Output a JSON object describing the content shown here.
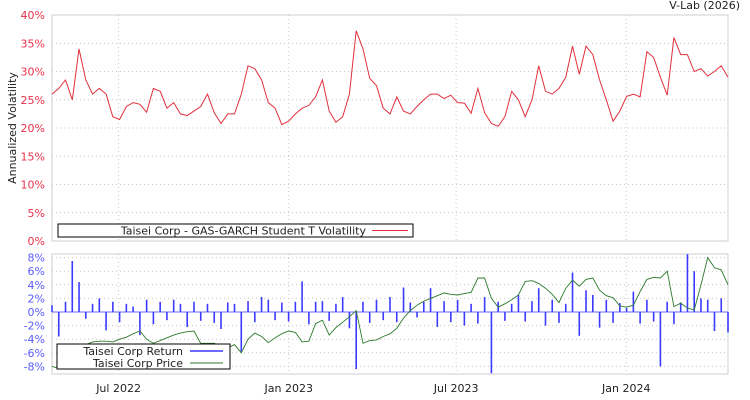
{
  "credit": "V-Lab (2026)",
  "colors": {
    "volatility": "#e0303c",
    "return": "#3a3aff",
    "price": "#2b7a2b",
    "vol_axis": "#e8304a",
    "ret_axis": "#5a5aff"
  },
  "chart_data": [
    {
      "type": "line",
      "title": "",
      "ylabel": "Annualized Volatility",
      "ylim": [
        0,
        40
      ],
      "yticks": [
        "0%",
        "5%",
        "10%",
        "15%",
        "20%",
        "25%",
        "30%",
        "35%",
        "40%"
      ],
      "xrange": [
        "2022-04-20",
        "2024-04-20"
      ],
      "grid": true,
      "legend": {
        "position": "bottom-left",
        "entries": [
          "Taisei Corp - GAS-GARCH Student T Volatility"
        ]
      },
      "series": [
        {
          "name": "Taisei Corp - GAS-GARCH Student T Volatility",
          "sampling": "evenly spaced over xrange",
          "values": [
            26,
            27,
            28.5,
            25,
            34,
            28.5,
            26,
            27,
            26,
            22,
            21.5,
            23.8,
            24.5,
            24.2,
            22.8,
            27,
            26.5,
            23.5,
            24.5,
            22.5,
            22.2,
            23,
            23.8,
            26,
            22.7,
            20.8,
            22.5,
            22.5,
            26,
            31,
            30.5,
            28.5,
            24.5,
            23.5,
            20.6,
            21.2,
            22.5,
            23.5,
            24,
            25.5,
            28.5,
            23,
            21,
            22,
            26,
            37.2,
            34,
            28.8,
            27.5,
            23.5,
            22.5,
            25.5,
            23,
            22.5,
            23.8,
            25,
            26,
            26,
            25.2,
            25.8,
            24.5,
            24.4,
            22.6,
            27,
            22.7,
            20.8,
            20.3,
            22,
            26.5,
            25,
            22,
            25,
            31,
            26.5,
            26,
            27,
            29,
            34.5,
            29.5,
            34.5,
            33,
            28.5,
            25,
            21.2,
            23,
            25.6,
            26,
            25.5,
            33.5,
            32.5,
            29,
            25.8,
            36,
            33,
            33,
            30,
            30.5,
            29.2,
            30,
            31,
            29
          ]
        }
      ]
    },
    {
      "type": "line",
      "title": "",
      "ylabel": "",
      "ylim": [
        -8.5,
        8.5
      ],
      "yticks": [
        "-8%",
        "-6%",
        "-4%",
        "-2%",
        "0%",
        "2%",
        "4%",
        "6%",
        "8%"
      ],
      "xticks": [
        {
          "date": "2022-07-01",
          "label": "Jul 2022"
        },
        {
          "date": "2023-01-01",
          "label": "Jan 2023"
        },
        {
          "date": "2023-07-01",
          "label": "Jul 2023"
        },
        {
          "date": "2024-01-01",
          "label": "Jan 2024"
        }
      ],
      "xrange": [
        "2022-04-20",
        "2024-04-20"
      ],
      "grid": true,
      "legend": {
        "position": "bottom-left",
        "entries": [
          "Taisei Corp Return",
          "Taisei Corp Price"
        ]
      },
      "series": [
        {
          "name": "Taisei Corp Return",
          "style": "bars",
          "sampling": "evenly spaced over xrange",
          "values": [
            1,
            -3.6,
            1.5,
            7.5,
            4.4,
            -1,
            1.2,
            2,
            -2.7,
            1.5,
            -1.5,
            1.2,
            0.8,
            -3.4,
            1.8,
            -1.8,
            1.5,
            -1.2,
            1.8,
            1.2,
            -2.2,
            1.5,
            -1.3,
            1.2,
            -1.6,
            -2.5,
            1.4,
            1.2,
            -5.8,
            1.6,
            -1.5,
            2.2,
            1.8,
            -1.2,
            1.4,
            -1.4,
            1.5,
            4.5,
            -1.8,
            1.5,
            1.6,
            -1.3,
            1.2,
            2.2,
            -2.4,
            -8.4,
            1.5,
            -1.6,
            1.8,
            -1.2,
            2.2,
            -1.5,
            3.6,
            1.4,
            -0.8,
            1.5,
            3.5,
            -2.2,
            1.6,
            -1.5,
            1.8,
            -2,
            1.2,
            -1.7,
            2.2,
            -9,
            1.5,
            -1.3,
            1.2,
            2.5,
            -1.4,
            1.6,
            3.5,
            -2,
            1.8,
            -1.6,
            1.2,
            5.8,
            -3.5,
            3.2,
            2.5,
            -2.3,
            1.8,
            -1.6,
            1.3,
            0.6,
            3,
            -1.7,
            1.8,
            -1.4,
            -8,
            1.5,
            -1.8,
            1.4,
            8.5,
            6,
            2,
            1.8,
            -2.8,
            2,
            -3
          ]
        },
        {
          "name": "Taisei Corp Price",
          "style": "line",
          "scale": "plotted on return axis",
          "sampling": "evenly spaced over xrange",
          "values": [
            -8,
            -8.3,
            -7.5,
            -6.5,
            -5.5,
            -4.8,
            -4.4,
            -4.3,
            -4.3,
            -4.4,
            -4,
            -3.7,
            -3.2,
            -2.8,
            -4,
            -4.6,
            -4.2,
            -3.8,
            -3.4,
            -3.1,
            -2.9,
            -2.8,
            -4.6,
            -4.6,
            -4.6,
            -5,
            -5.3,
            -4.8,
            -6,
            -4,
            -3.1,
            -3.6,
            -4.5,
            -3.8,
            -3.2,
            -2.8,
            -3,
            -4.4,
            -4.3,
            -1.7,
            -1.2,
            -3.4,
            -2.3,
            -1.5,
            -0.7,
            0.2,
            -4.6,
            -4.2,
            -4.1,
            -3.6,
            -3.2,
            -2.4,
            -0.9,
            0.2,
            1,
            1.6,
            2,
            2.4,
            2.8,
            2.6,
            2.5,
            2.7,
            2.9,
            5,
            5,
            2,
            0.7,
            1.2,
            1.8,
            2.5,
            4.5,
            4.6,
            4.2,
            3.5,
            2.6,
            1.4,
            3.5,
            4.7,
            3.8,
            4.8,
            5,
            3.2,
            2.4,
            2.1,
            0.9,
            0.7,
            1,
            3,
            4.8,
            5.1,
            5,
            6,
            0.8,
            1.3,
            0.6,
            0.3,
            4,
            8,
            6.5,
            6.2,
            4
          ]
        }
      ]
    }
  ]
}
